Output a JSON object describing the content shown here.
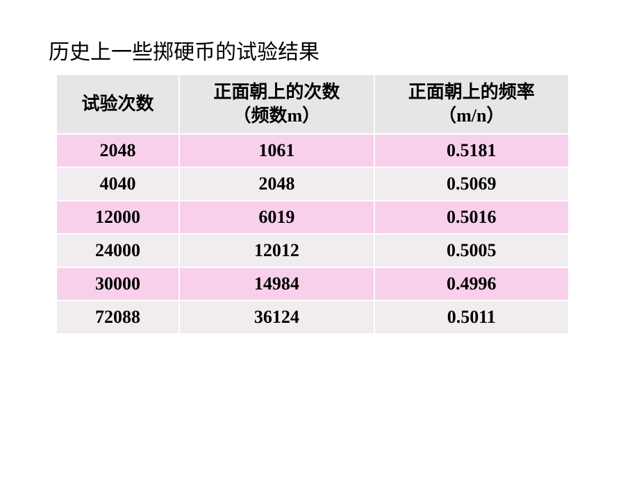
{
  "slide": {
    "title": "历史上一些掷硬币的试验结果",
    "title_fontsize": 30,
    "title_color": "#000000",
    "background_color": "#ffffff"
  },
  "table": {
    "type": "table",
    "header_background": "#e6e6e6",
    "row_odd_background": "#f8d0ec",
    "row_even_background": "#f0ecf0",
    "border_color": "#ffffff",
    "cell_fontsize": 26,
    "cell_color": "#000000",
    "columns": [
      {
        "label": "试验次数",
        "width_pct": 24
      },
      {
        "label_line1": "正面朝上的次数",
        "label_line2": "（频数m）",
        "width_pct": 38
      },
      {
        "label_line1": "正面朝上的频率",
        "label_line2": "（m/n）",
        "width_pct": 38
      }
    ],
    "rows": [
      {
        "trials": "2048",
        "heads": "1061",
        "freq": "0.5181"
      },
      {
        "trials": "4040",
        "heads": "2048",
        "freq": "0.5069"
      },
      {
        "trials": "12000",
        "heads": "6019",
        "freq": "0.5016"
      },
      {
        "trials": "24000",
        "heads": "12012",
        "freq": "0.5005"
      },
      {
        "trials": "30000",
        "heads": "14984",
        "freq": "0.4996"
      },
      {
        "trials": "72088",
        "heads": "36124",
        "freq": "0.5011"
      }
    ]
  }
}
